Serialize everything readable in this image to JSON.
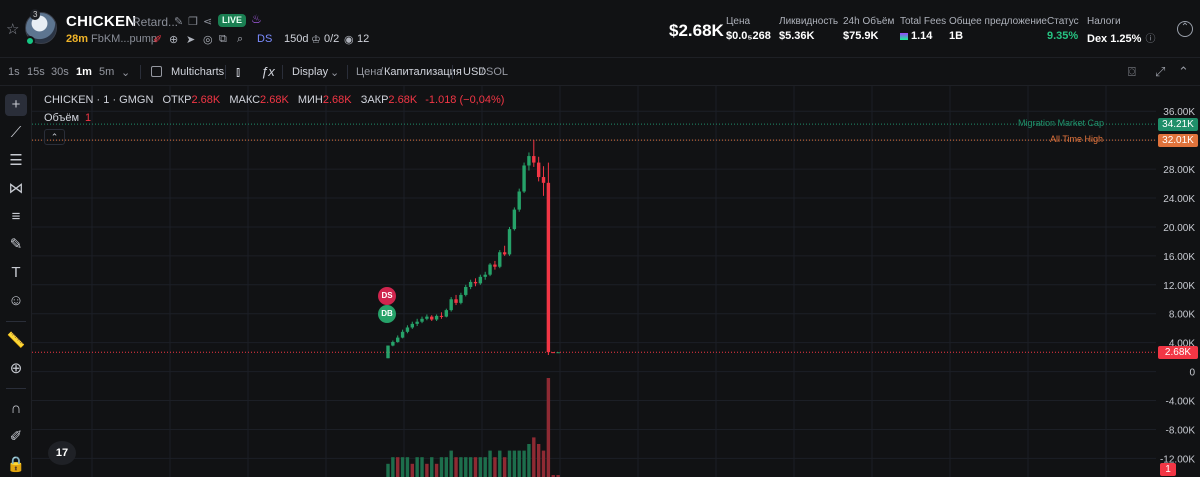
{
  "token": {
    "rank_badge": "3",
    "name": "CHICKEN",
    "subtitle": "Retard...",
    "live_label": "LIVE",
    "age": "28m",
    "address": "FbKM...pump",
    "ds_label": "DS",
    "ds_value": "150d",
    "holders_value": "0/2",
    "views_value": "12"
  },
  "stats": {
    "price_big": "$2.68K",
    "price_label": "Цена",
    "price_value": "$0.0₅268",
    "liquidity_label": "Ликвидность",
    "liquidity_value": "$5.36K",
    "volume_label": "24h Объём",
    "volume_value": "$75.9K",
    "fees_label": "Total Fees",
    "fees_value": "1.14",
    "supply_label": "Общее предложение",
    "supply_value": "1B",
    "status_label": "Статус",
    "status_value": "9.35%",
    "taxes_label": "Налоги",
    "taxes_value": "Dex 1.25%"
  },
  "toolbar": {
    "intervals": [
      "1s",
      "15s",
      "30s",
      "1m",
      "5m"
    ],
    "active_interval": "1m",
    "multicharts": "Multicharts",
    "display": "Display",
    "price_mode": "Цена",
    "cap_mode": "Капитализация",
    "currency_usd": "USD",
    "currency_sol": "SOL"
  },
  "legend": {
    "symbol": "CHICKEN · 1 · GMGN",
    "open_label": "ОТКР",
    "open": "2.68K",
    "high_label": "МАКС",
    "high": "2.68K",
    "low_label": "МИН",
    "low": "2.68K",
    "close_label": "ЗАКР",
    "close": "2.68K",
    "change": "-1.018 (−0,04%)",
    "volume_label": "Объём",
    "volume_value": "1"
  },
  "chart_data": {
    "type": "candlestick",
    "ylabel": "Market Cap (USD)",
    "y_ticks": [
      "36.00K",
      "32.00K",
      "28.00K",
      "24.00K",
      "20.00K",
      "16.00K",
      "12.00K",
      "8.00K",
      "4.00K",
      "0",
      "-4.00K",
      "-8.00K",
      "-12.00K"
    ],
    "ylim": [
      -12500,
      37000
    ],
    "lines": [
      {
        "name": "Migration Market Cap",
        "value": 34210,
        "label": "34.21K",
        "color": "#1f8f6a"
      },
      {
        "name": "All Time High",
        "value": 32010,
        "label": "32.01K",
        "color": "#e0733c"
      }
    ],
    "last_price": {
      "value": 2680,
      "label": "2.68K"
    },
    "volume_tag": "1",
    "markers": [
      {
        "label": "DS",
        "color": "#d0254e",
        "value": 10500
      },
      {
        "label": "DB",
        "color": "#26a269",
        "value": 8000
      }
    ],
    "candles": [
      [
        1850,
        3600,
        1850,
        3600
      ],
      [
        3600,
        4300,
        3500,
        4100
      ],
      [
        4100,
        5000,
        4000,
        4700
      ],
      [
        4700,
        5800,
        4600,
        5500
      ],
      [
        5500,
        6400,
        5300,
        6100
      ],
      [
        6100,
        6900,
        5900,
        6600
      ],
      [
        6600,
        7300,
        6300,
        6900
      ],
      [
        6900,
        7600,
        6700,
        7300
      ],
      [
        7300,
        7900,
        7100,
        7600
      ],
      [
        7600,
        7800,
        7000,
        7200
      ],
      [
        7200,
        7900,
        7000,
        7700
      ],
      [
        7700,
        8200,
        7300,
        7600
      ],
      [
        7600,
        8700,
        7500,
        8500
      ],
      [
        8500,
        10300,
        8300,
        10000
      ],
      [
        10000,
        10600,
        9200,
        9500
      ],
      [
        9500,
        10900,
        9300,
        10600
      ],
      [
        10600,
        12000,
        10400,
        11700
      ],
      [
        11700,
        12700,
        11400,
        12400
      ],
      [
        12400,
        12900,
        11800,
        12200
      ],
      [
        12200,
        13400,
        12000,
        13100
      ],
      [
        13100,
        13800,
        12700,
        13400
      ],
      [
        13400,
        15000,
        13200,
        14800
      ],
      [
        14800,
        15300,
        14100,
        14500
      ],
      [
        14500,
        16800,
        14300,
        16500
      ],
      [
        16500,
        17400,
        16000,
        16200
      ],
      [
        16200,
        20000,
        16000,
        19700
      ],
      [
        19700,
        22700,
        19500,
        22400
      ],
      [
        22400,
        25300,
        22100,
        24900
      ],
      [
        24900,
        28900,
        24700,
        28500
      ],
      [
        28500,
        30300,
        27800,
        29800
      ],
      [
        29800,
        32010,
        28300,
        28900
      ],
      [
        28900,
        29700,
        26300,
        26900
      ],
      [
        26900,
        28400,
        24300,
        26100
      ],
      [
        26100,
        28900,
        2300,
        2690
      ],
      [
        2690,
        2690,
        2680,
        2680
      ],
      [
        2680,
        2680,
        2680,
        2680
      ]
    ],
    "volume": [
      {
        "v": 2,
        "up": true
      },
      {
        "v": 3,
        "up": true
      },
      {
        "v": 3,
        "up": false
      },
      {
        "v": 3,
        "up": true
      },
      {
        "v": 3,
        "up": true
      },
      {
        "v": 2,
        "up": false
      },
      {
        "v": 3,
        "up": true
      },
      {
        "v": 3,
        "up": true
      },
      {
        "v": 2,
        "up": false
      },
      {
        "v": 3,
        "up": true
      },
      {
        "v": 2,
        "up": false
      },
      {
        "v": 3,
        "up": true
      },
      {
        "v": 3,
        "up": true
      },
      {
        "v": 4,
        "up": true
      },
      {
        "v": 3,
        "up": false
      },
      {
        "v": 3,
        "up": true
      },
      {
        "v": 3,
        "up": true
      },
      {
        "v": 3,
        "up": true
      },
      {
        "v": 3,
        "up": false
      },
      {
        "v": 3,
        "up": true
      },
      {
        "v": 3,
        "up": true
      },
      {
        "v": 4,
        "up": true
      },
      {
        "v": 3,
        "up": false
      },
      {
        "v": 4,
        "up": true
      },
      {
        "v": 3,
        "up": false
      },
      {
        "v": 4,
        "up": true
      },
      {
        "v": 4,
        "up": true
      },
      {
        "v": 4,
        "up": true
      },
      {
        "v": 4,
        "up": true
      },
      {
        "v": 5,
        "up": true
      },
      {
        "v": 6,
        "up": false
      },
      {
        "v": 5,
        "up": false
      },
      {
        "v": 4,
        "up": false
      },
      {
        "v": 15,
        "up": false
      },
      {
        "v": 0.3,
        "up": false
      },
      {
        "v": 0.3,
        "up": false
      }
    ],
    "colors": {
      "up": "#26a269",
      "down": "#f23645",
      "grid": "#1c1f26"
    }
  }
}
